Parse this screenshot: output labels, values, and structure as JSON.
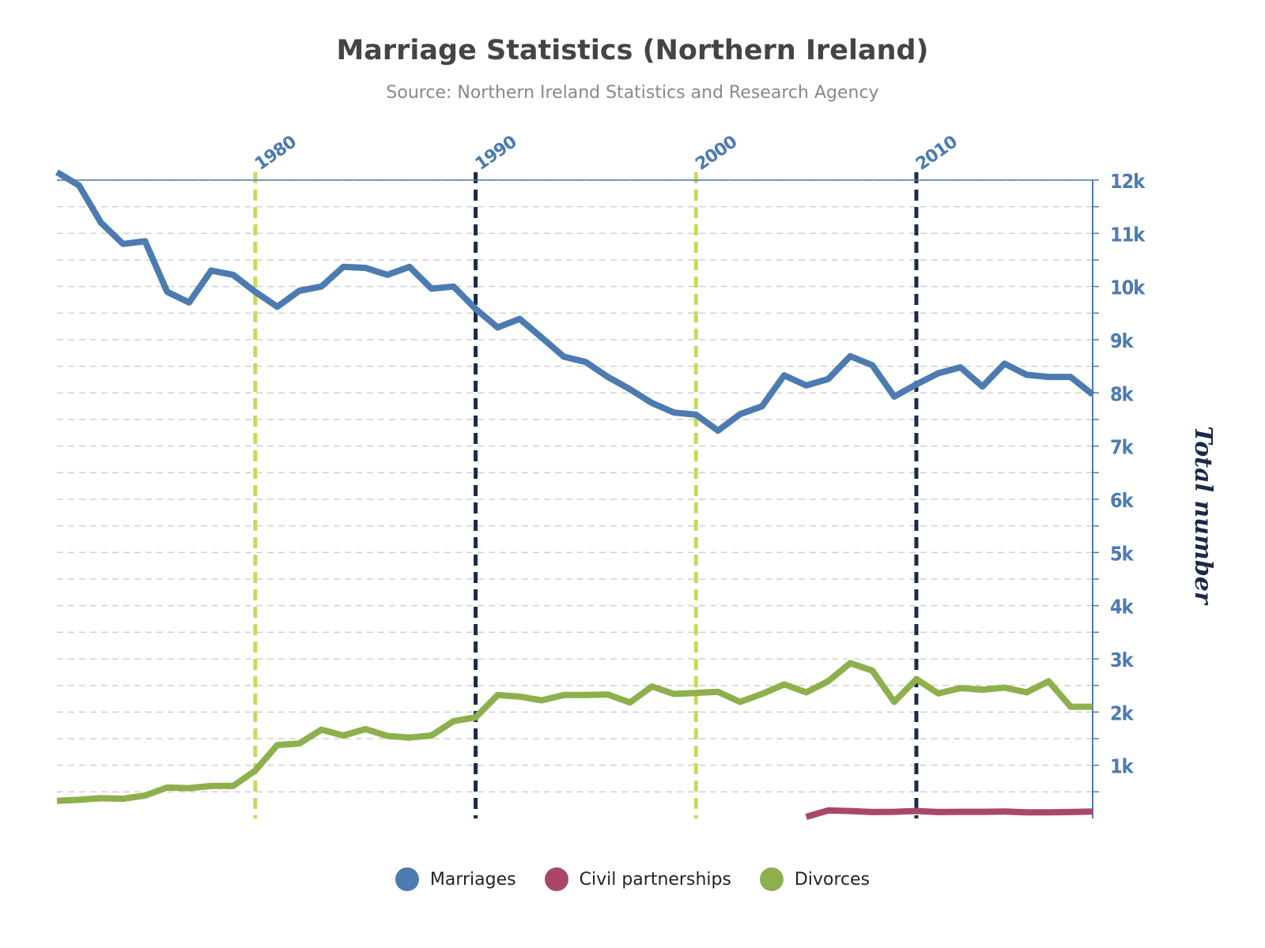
{
  "chart_data": {
    "type": "line",
    "title": "Marriage Statistics (Northern Ireland)",
    "subtitle": "Source: Northern Ireland Statistics and Research Agency",
    "ylabel": "Total number",
    "ylim": [
      0,
      12000
    ],
    "xlim": [
      1971,
      2018
    ],
    "y_ticks": [
      "1k",
      "2k",
      "3k",
      "4k",
      "5k",
      "6k",
      "7k",
      "8k",
      "9k",
      "10k",
      "11k",
      "12k"
    ],
    "x_ticks": [
      "1980",
      "1990",
      "2000",
      "2010"
    ],
    "y_axis_position": "right",
    "x_axis_position": "top",
    "grid": true,
    "legend_position": "bottom-center",
    "plot_lines": [
      {
        "x": 1980,
        "color": "#c8d95a"
      },
      {
        "x": 1990,
        "color": "#1c2a4a"
      },
      {
        "x": 2000,
        "color": "#c8d95a"
      },
      {
        "x": 2010,
        "color": "#1c2a4a"
      }
    ],
    "series": [
      {
        "name": "Marriages",
        "color": "#4c7bb0",
        "x": [
          1971,
          1972,
          1973,
          1974,
          1975,
          1976,
          1977,
          1978,
          1979,
          1980,
          1981,
          1982,
          1983,
          1984,
          1985,
          1986,
          1987,
          1988,
          1989,
          1990,
          1991,
          1992,
          1993,
          1994,
          1995,
          1996,
          1997,
          1998,
          1999,
          2000,
          2001,
          2002,
          2003,
          2004,
          2005,
          2006,
          2007,
          2008,
          2009,
          2010,
          2011,
          2012,
          2013,
          2014,
          2015,
          2016,
          2017,
          2018
        ],
        "values": [
          12150,
          11900,
          11200,
          10800,
          10850,
          9900,
          9700,
          10300,
          10220,
          9900,
          9620,
          9920,
          10000,
          10370,
          10350,
          10220,
          10370,
          9960,
          10000,
          9580,
          9230,
          9390,
          9040,
          8680,
          8580,
          8300,
          8070,
          7810,
          7630,
          7590,
          7290,
          7600,
          7750,
          8330,
          8140,
          8260,
          8690,
          8520,
          7930,
          8160,
          8370,
          8480,
          8120,
          8550,
          8340,
          8300,
          8300,
          7970
        ]
      },
      {
        "name": "Civil partnerships",
        "color": "#a9476a",
        "x": [
          2005,
          2006,
          2007,
          2008,
          2009,
          2010,
          2011,
          2012,
          2013,
          2014,
          2015,
          2016,
          2017,
          2018
        ],
        "values": [
          30,
          150,
          140,
          120,
          125,
          140,
          120,
          125,
          125,
          130,
          115,
          115,
          120,
          130
        ]
      },
      {
        "name": "Divorces",
        "color": "#8db04d",
        "x": [
          1971,
          1972,
          1973,
          1974,
          1975,
          1976,
          1977,
          1978,
          1979,
          1980,
          1981,
          1982,
          1983,
          1984,
          1985,
          1986,
          1987,
          1988,
          1989,
          1990,
          1991,
          1992,
          1993,
          1994,
          1995,
          1996,
          1997,
          1998,
          1999,
          2000,
          2001,
          2002,
          2003,
          2004,
          2005,
          2006,
          2007,
          2008,
          2009,
          2010,
          2011,
          2012,
          2013,
          2014,
          2015,
          2016,
          2017,
          2018
        ],
        "values": [
          330,
          350,
          380,
          370,
          430,
          580,
          570,
          610,
          610,
          900,
          1380,
          1410,
          1670,
          1560,
          1680,
          1550,
          1520,
          1560,
          1830,
          1900,
          2320,
          2290,
          2220,
          2320,
          2320,
          2330,
          2180,
          2480,
          2340,
          2360,
          2380,
          2190,
          2340,
          2520,
          2370,
          2580,
          2920,
          2780,
          2190,
          2620,
          2350,
          2450,
          2420,
          2460,
          2370,
          2580,
          2100,
          2100
        ]
      }
    ]
  }
}
